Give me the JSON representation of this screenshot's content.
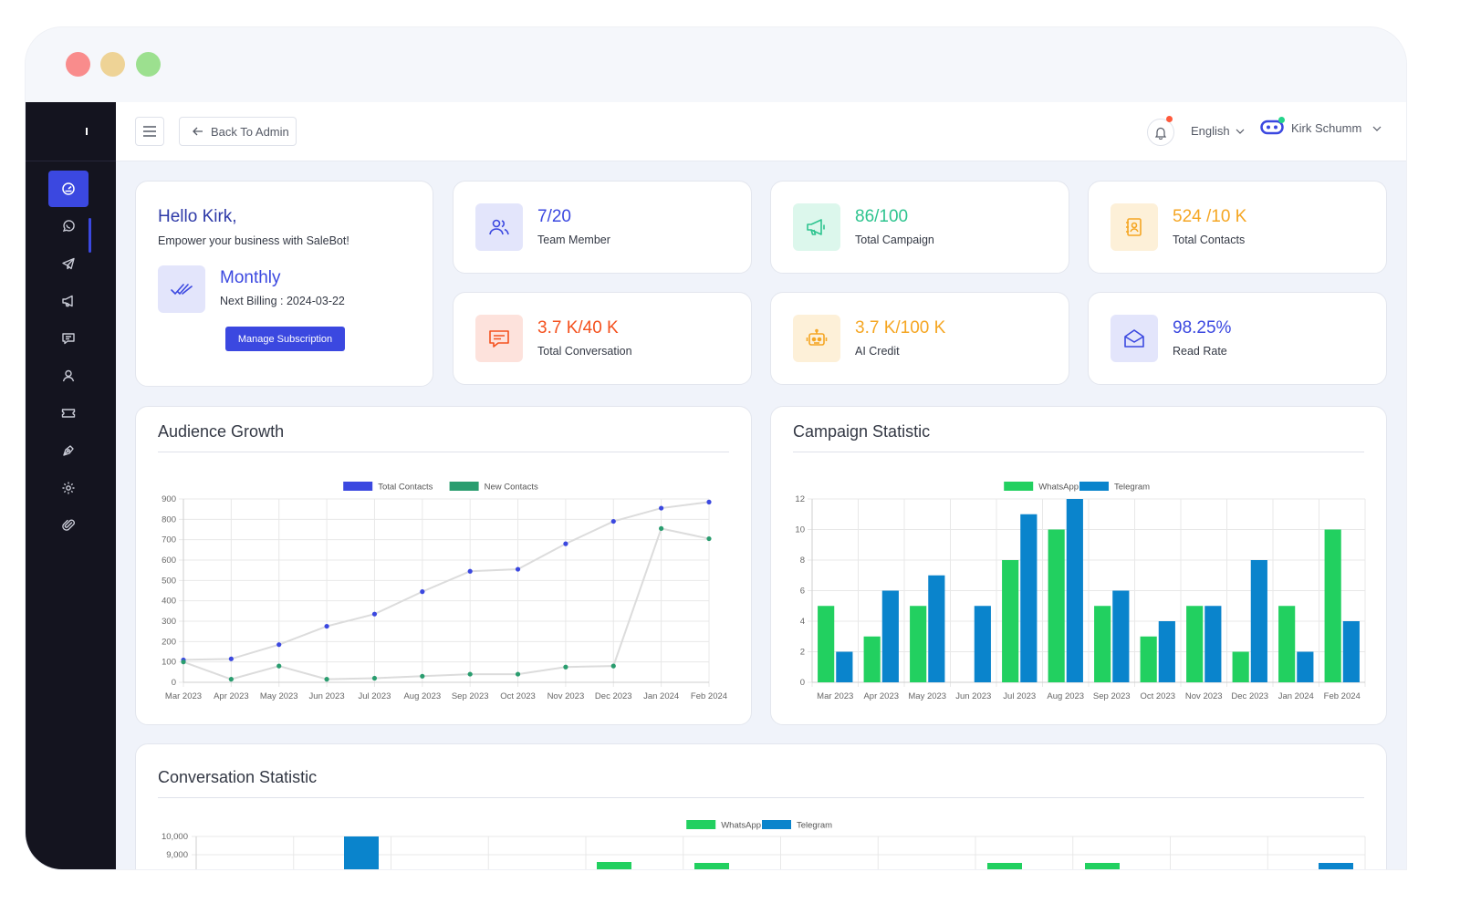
{
  "window": {
    "dots": [
      {
        "name": "close-dot",
        "color": "#f98c8c"
      },
      {
        "name": "minimize-dot",
        "color": "#eed396"
      },
      {
        "name": "maximize-dot",
        "color": "#9ce08f"
      }
    ]
  },
  "sidebar": {
    "items": [
      {
        "name": "sidebar-item-dashboard",
        "icon": "dashboard-icon",
        "active": true
      },
      {
        "name": "sidebar-item-whatsapp",
        "icon": "whatsapp-icon"
      },
      {
        "name": "sidebar-item-telegram",
        "icon": "telegram-icon"
      },
      {
        "name": "sidebar-item-campaigns",
        "icon": "megaphone-icon"
      },
      {
        "name": "sidebar-item-chat",
        "icon": "chat-icon"
      },
      {
        "name": "sidebar-item-contacts",
        "icon": "user-icon"
      },
      {
        "name": "sidebar-item-tickets",
        "icon": "ticket-icon"
      },
      {
        "name": "sidebar-item-flow",
        "icon": "pen-tool-icon"
      },
      {
        "name": "sidebar-item-settings",
        "icon": "gear-icon"
      },
      {
        "name": "sidebar-item-attachments",
        "icon": "paperclip-icon"
      }
    ]
  },
  "topbar": {
    "back_label": "Back To Admin",
    "language": "English",
    "user_name": "Kirk Schumm"
  },
  "welcome": {
    "greeting": "Hello Kirk,",
    "subtitle": "Empower your business with SaleBot!",
    "plan": "Monthly",
    "billing": "Next Billing : 2024-03-22",
    "button": "Manage Subscription"
  },
  "stats": [
    {
      "value": "7/20",
      "label": "Team Member",
      "color": "#3b48e0",
      "bg": "#e3e5fb",
      "icon": "team-icon"
    },
    {
      "value": "86/100",
      "label": "Total Campaign",
      "color": "#2ec48f",
      "bg": "#dcf7ec",
      "icon": "megaphone-icon"
    },
    {
      "value": "524 /10 K",
      "label": "Total Contacts",
      "color": "#f5a623",
      "bg": "#fdf0d8",
      "icon": "contact-book-icon"
    },
    {
      "value": "3.7 K/40 K",
      "label": "Total Conversation",
      "color": "#f4511e",
      "bg": "#fde2dc",
      "icon": "message-icon"
    },
    {
      "value": "3.7 K/100 K",
      "label": "AI Credit",
      "color": "#f5a623",
      "bg": "#fdf0d8",
      "icon": "robot-icon"
    },
    {
      "value": "98.25%",
      "label": "Read Rate",
      "color": "#3b48e0",
      "bg": "#e3e5fb",
      "icon": "envelope-open-icon"
    }
  ],
  "panels": {
    "audience": "Audience Growth",
    "campaign": "Campaign Statistic",
    "conversation": "Conversation Statistic"
  },
  "chart_data": [
    {
      "type": "line",
      "categories": [
        "Mar 2023",
        "Apr 2023",
        "May 2023",
        "Jun 2023",
        "Jul 2023",
        "Aug 2023",
        "Sep 2023",
        "Oct 2023",
        "Nov 2023",
        "Dec 2023",
        "Jan 2024",
        "Feb 2024"
      ],
      "series": [
        {
          "name": "Total Contacts",
          "color": "#3b48e0",
          "values": [
            110,
            115,
            185,
            275,
            335,
            445,
            545,
            555,
            680,
            790,
            855,
            885
          ]
        },
        {
          "name": "New Contacts",
          "color": "#2a9d6f",
          "values": [
            100,
            15,
            80,
            15,
            20,
            30,
            40,
            40,
            75,
            80,
            755,
            705
          ]
        }
      ],
      "ylim": [
        0,
        900
      ],
      "yticks": [
        0,
        100,
        200,
        300,
        400,
        500,
        600,
        700,
        800,
        900
      ],
      "legend": "top",
      "grid": true
    },
    {
      "type": "bar",
      "categories": [
        "Mar 2023",
        "Apr 2023",
        "May 2023",
        "Jun 2023",
        "Jul 2023",
        "Aug 2023",
        "Sep 2023",
        "Oct 2023",
        "Nov 2023",
        "Dec 2023",
        "Jan 2024",
        "Feb 2024"
      ],
      "series": [
        {
          "name": "WhatsApp",
          "color": "#22d060",
          "values": [
            5,
            3,
            5,
            0,
            8,
            10,
            5,
            3,
            5,
            2,
            5,
            10
          ]
        },
        {
          "name": "Telegram",
          "color": "#0a84cc",
          "values": [
            2,
            6,
            7,
            5,
            11,
            12,
            6,
            4,
            5,
            8,
            2,
            4
          ]
        }
      ],
      "ylim": [
        0,
        12
      ],
      "yticks": [
        0,
        2,
        4,
        6,
        8,
        10,
        12
      ],
      "legend": "top",
      "grid": true
    },
    {
      "type": "bar",
      "series": [
        {
          "name": "WhatsApp",
          "color": "#22d060"
        },
        {
          "name": "Telegram",
          "color": "#0a84cc"
        }
      ],
      "ytick_labels": [
        "10,000",
        "9,000"
      ],
      "legend": "top",
      "grid": true
    }
  ]
}
